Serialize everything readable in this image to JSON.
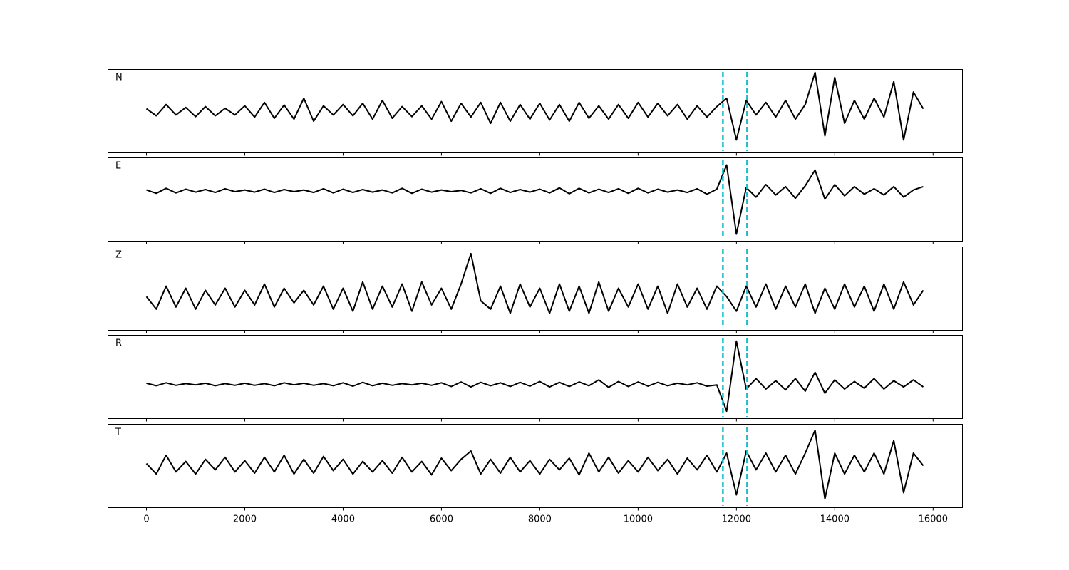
{
  "chart_data": {
    "type": "line",
    "x": [
      0,
      200,
      400,
      600,
      800,
      1000,
      1200,
      1400,
      1600,
      1800,
      2000,
      2200,
      2400,
      2600,
      2800,
      3000,
      3200,
      3400,
      3600,
      3800,
      4000,
      4200,
      4400,
      4600,
      4800,
      5000,
      5200,
      5400,
      5600,
      5800,
      6000,
      6200,
      6400,
      6600,
      6800,
      7000,
      7200,
      7400,
      7600,
      7800,
      8000,
      8200,
      8400,
      8600,
      8800,
      9000,
      9200,
      9400,
      9600,
      9800,
      10000,
      10200,
      10400,
      10600,
      10800,
      11000,
      11200,
      11400,
      11600,
      11800,
      12000,
      12200,
      12400,
      12600,
      12800,
      13000,
      13200,
      13400,
      13600,
      13800,
      14000,
      14200,
      14400,
      14600,
      14800,
      15000,
      15200,
      15400,
      15600,
      15800
    ],
    "series": [
      {
        "name": "N",
        "color": "#000000",
        "values": [
          0.05,
          -0.12,
          0.15,
          -0.1,
          0.08,
          -0.14,
          0.1,
          -0.12,
          0.06,
          -0.1,
          0.12,
          -0.15,
          0.2,
          -0.18,
          0.14,
          -0.2,
          0.3,
          -0.25,
          0.12,
          -0.1,
          0.15,
          -0.12,
          0.18,
          -0.2,
          0.25,
          -0.18,
          0.1,
          -0.14,
          0.12,
          -0.2,
          0.22,
          -0.25,
          0.18,
          -0.15,
          0.2,
          -0.3,
          0.2,
          -0.25,
          0.15,
          -0.2,
          0.18,
          -0.22,
          0.15,
          -0.25,
          0.2,
          -0.18,
          0.12,
          -0.2,
          0.15,
          -0.18,
          0.2,
          -0.15,
          0.18,
          -0.12,
          0.15,
          -0.2,
          0.12,
          -0.15,
          0.1,
          0.3,
          -0.7,
          0.25,
          -0.1,
          0.2,
          -0.15,
          0.25,
          -0.2,
          0.15,
          0.92,
          -0.6,
          0.8,
          -0.3,
          0.25,
          -0.2,
          0.3,
          -0.15,
          0.7,
          -0.7,
          0.45,
          0.05
        ]
      },
      {
        "name": "E",
        "color": "#000000",
        "values": [
          0.22,
          0.14,
          0.26,
          0.15,
          0.24,
          0.17,
          0.23,
          0.16,
          0.25,
          0.18,
          0.22,
          0.17,
          0.24,
          0.16,
          0.23,
          0.18,
          0.22,
          0.16,
          0.25,
          0.15,
          0.24,
          0.16,
          0.23,
          0.17,
          0.22,
          0.15,
          0.26,
          0.14,
          0.24,
          0.17,
          0.22,
          0.18,
          0.21,
          0.15,
          0.25,
          0.14,
          0.26,
          0.16,
          0.23,
          0.17,
          0.24,
          0.15,
          0.27,
          0.13,
          0.26,
          0.15,
          0.24,
          0.16,
          0.25,
          0.14,
          0.26,
          0.15,
          0.24,
          0.17,
          0.22,
          0.16,
          0.25,
          0.12,
          0.24,
          0.82,
          -0.84,
          0.28,
          0.05,
          0.35,
          0.1,
          0.3,
          0.02,
          0.32,
          0.7,
          0.0,
          0.35,
          0.08,
          0.3,
          0.12,
          0.25,
          0.1,
          0.3,
          0.05,
          0.22,
          0.3
        ]
      },
      {
        "name": "Z",
        "color": "#000000",
        "values": [
          -0.2,
          -0.5,
          0.05,
          -0.45,
          0.0,
          -0.5,
          -0.05,
          -0.4,
          0.0,
          -0.45,
          -0.05,
          -0.4,
          0.1,
          -0.45,
          0.0,
          -0.35,
          -0.05,
          -0.4,
          0.05,
          -0.5,
          0.0,
          -0.55,
          0.15,
          -0.5,
          0.05,
          -0.45,
          0.1,
          -0.55,
          0.15,
          -0.4,
          0.0,
          -0.5,
          0.1,
          0.83,
          -0.3,
          -0.5,
          0.05,
          -0.6,
          0.1,
          -0.45,
          0.0,
          -0.6,
          0.1,
          -0.55,
          0.05,
          -0.6,
          0.15,
          -0.55,
          0.0,
          -0.45,
          0.1,
          -0.5,
          0.05,
          -0.6,
          0.1,
          -0.45,
          0.0,
          -0.5,
          0.05,
          -0.2,
          -0.55,
          0.05,
          -0.45,
          0.1,
          -0.5,
          0.05,
          -0.45,
          0.1,
          -0.6,
          0.0,
          -0.5,
          0.1,
          -0.45,
          0.05,
          -0.55,
          0.1,
          -0.5,
          0.15,
          -0.4,
          -0.05
        ]
      },
      {
        "name": "R",
        "color": "#000000",
        "values": [
          -0.16,
          -0.22,
          -0.15,
          -0.21,
          -0.17,
          -0.2,
          -0.16,
          -0.22,
          -0.17,
          -0.21,
          -0.16,
          -0.21,
          -0.17,
          -0.22,
          -0.15,
          -0.2,
          -0.16,
          -0.21,
          -0.17,
          -0.22,
          -0.15,
          -0.23,
          -0.14,
          -0.22,
          -0.16,
          -0.21,
          -0.17,
          -0.2,
          -0.16,
          -0.21,
          -0.15,
          -0.24,
          -0.13,
          -0.25,
          -0.14,
          -0.22,
          -0.15,
          -0.24,
          -0.14,
          -0.23,
          -0.12,
          -0.25,
          -0.14,
          -0.24,
          -0.13,
          -0.22,
          -0.08,
          -0.26,
          -0.12,
          -0.24,
          -0.13,
          -0.23,
          -0.14,
          -0.22,
          -0.16,
          -0.2,
          -0.15,
          -0.23,
          -0.2,
          -0.83,
          0.85,
          -0.3,
          -0.05,
          -0.3,
          -0.1,
          -0.32,
          -0.05,
          -0.35,
          0.1,
          -0.4,
          -0.08,
          -0.3,
          -0.12,
          -0.28,
          -0.05,
          -0.3,
          -0.1,
          -0.25,
          -0.08,
          -0.25
        ]
      },
      {
        "name": "T",
        "color": "#000000",
        "values": [
          0.05,
          -0.2,
          0.25,
          -0.15,
          0.1,
          -0.2,
          0.15,
          -0.1,
          0.2,
          -0.15,
          0.12,
          -0.18,
          0.2,
          -0.15,
          0.25,
          -0.2,
          0.15,
          -0.18,
          0.22,
          -0.12,
          0.15,
          -0.2,
          0.1,
          -0.15,
          0.12,
          -0.18,
          0.2,
          -0.15,
          0.1,
          -0.22,
          0.18,
          -0.12,
          0.15,
          0.35,
          -0.2,
          0.15,
          -0.18,
          0.2,
          -0.15,
          0.12,
          -0.2,
          0.15,
          -0.1,
          0.18,
          -0.22,
          0.3,
          -0.15,
          0.2,
          -0.18,
          0.12,
          -0.15,
          0.2,
          -0.12,
          0.15,
          -0.2,
          0.18,
          -0.1,
          0.25,
          -0.15,
          0.3,
          -0.7,
          0.35,
          -0.1,
          0.3,
          -0.15,
          0.25,
          -0.2,
          0.3,
          0.85,
          -0.8,
          0.3,
          -0.2,
          0.25,
          -0.15,
          0.3,
          -0.2,
          0.6,
          -0.65,
          0.3,
          0.0
        ]
      }
    ],
    "vlines": {
      "values": [
        11725,
        12217
      ],
      "color": "#17becf"
    },
    "xlim": [
      -790,
      16590
    ],
    "ylim": [
      -1,
      1
    ],
    "xticks": [
      0,
      2000,
      4000,
      6000,
      8000,
      10000,
      12000,
      14000,
      16000
    ]
  }
}
